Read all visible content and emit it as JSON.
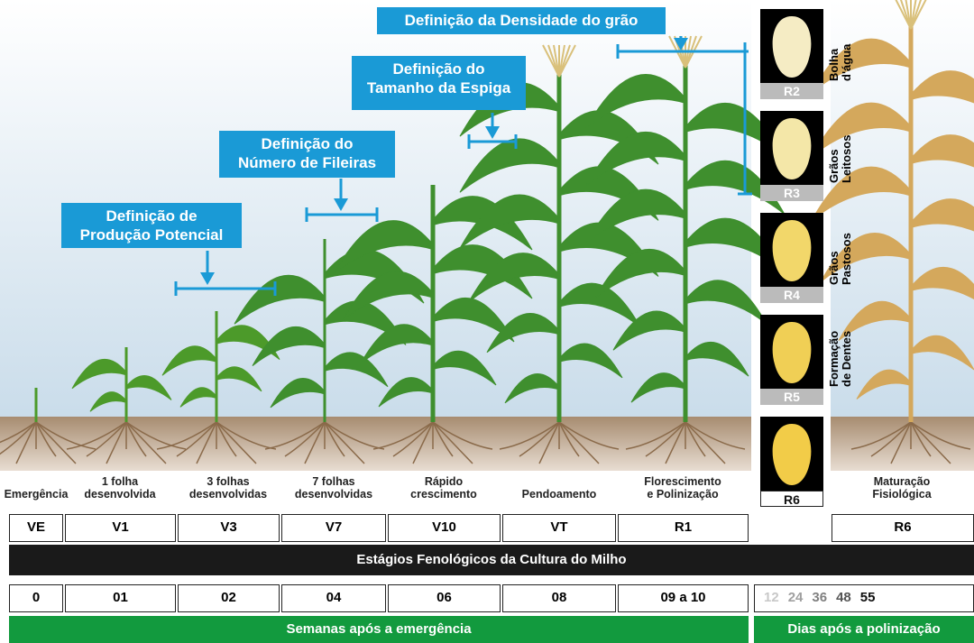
{
  "annotations": [
    [
      "Definição de",
      "Produção Potencial"
    ],
    [
      "Definição do",
      "Número de Fileiras"
    ],
    [
      "Definição do",
      "Tamanho da Espiga"
    ],
    [
      "Definição da Densidade do grão"
    ]
  ],
  "stages": [
    {
      "description": [
        "Emergência"
      ],
      "code": "VE"
    },
    {
      "description": [
        "1 folha",
        "desenvolvida"
      ],
      "code": "V1"
    },
    {
      "description": [
        "3 folhas",
        "desenvolvidas"
      ],
      "code": "V3"
    },
    {
      "description": [
        "7 folhas",
        "desenvolvidas"
      ],
      "code": "V7"
    },
    {
      "description": [
        "Rápido",
        "crescimento"
      ],
      "code": "V10"
    },
    {
      "description": [
        "Pendoamento"
      ],
      "code": "VT"
    },
    {
      "description": [
        "Florescimento",
        "e Polinização"
      ],
      "code": "R1"
    },
    {
      "description": [
        "Maturação",
        "Fisiológica"
      ],
      "code": "R6"
    }
  ],
  "kernels": [
    {
      "code": "R2",
      "label": [
        "Bolha",
        "d'água"
      ]
    },
    {
      "code": "R3",
      "label": [
        "Grãos",
        "Leitosos"
      ]
    },
    {
      "code": "R4",
      "label": [
        "Grãos",
        "Pastosos"
      ]
    },
    {
      "code": "R5",
      "label": [
        "Formação",
        "de Dentes"
      ]
    },
    {
      "code": "R6"
    }
  ],
  "phenology_banner": "Estágios Fenológicos da Cultura do Milho",
  "weeks": [
    "0",
    "01",
    "02",
    "04",
    "06",
    "08",
    "09 a 10"
  ],
  "weeks_banner": "Semanas após a emergência",
  "days": [
    12,
    24,
    36,
    48,
    55
  ],
  "days_banner": "Dias após a polinização"
}
